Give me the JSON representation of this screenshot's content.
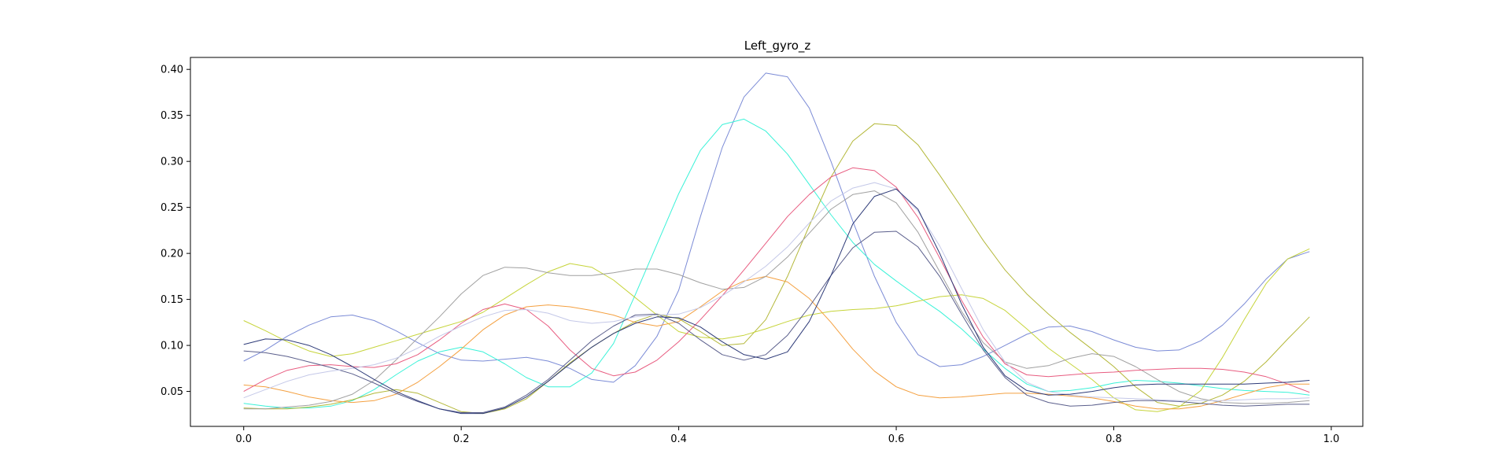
{
  "chart_data": {
    "type": "line",
    "title": "Left_gyro_z",
    "xlabel": "",
    "ylabel": "",
    "xlim": [
      -0.049,
      1.029
    ],
    "ylim": [
      0.012,
      0.413
    ],
    "xticks": [
      0.0,
      0.2,
      0.4,
      0.6,
      0.8,
      1.0
    ],
    "xtick_labels": [
      "0.0",
      "0.2",
      "0.4",
      "0.6",
      "0.8",
      "1.0"
    ],
    "yticks": [
      0.05,
      0.1,
      0.15,
      0.2,
      0.25,
      0.3,
      0.35,
      0.4
    ],
    "ytick_labels": [
      "0.05",
      "0.10",
      "0.15",
      "0.20",
      "0.25",
      "0.30",
      "0.35",
      "0.40"
    ],
    "grid": false,
    "legend": "none",
    "x": [
      0.0,
      0.02,
      0.04,
      0.06,
      0.08,
      0.1,
      0.12,
      0.14,
      0.16,
      0.18,
      0.2,
      0.22,
      0.24,
      0.26,
      0.28,
      0.3,
      0.32,
      0.34,
      0.36,
      0.38,
      0.4,
      0.42,
      0.44,
      0.46,
      0.48,
      0.5,
      0.52,
      0.54,
      0.56,
      0.58,
      0.6,
      0.62,
      0.64,
      0.66,
      0.68,
      0.7,
      0.72,
      0.74,
      0.76,
      0.78,
      0.8,
      0.82,
      0.84,
      0.86,
      0.88,
      0.9,
      0.92,
      0.94,
      0.96,
      0.98
    ],
    "series": [
      {
        "color": "#7b8bd6",
        "values": [
          0.083,
          0.095,
          0.11,
          0.122,
          0.131,
          0.133,
          0.127,
          0.116,
          0.103,
          0.091,
          0.084,
          0.083,
          0.085,
          0.087,
          0.083,
          0.075,
          0.063,
          0.06,
          0.078,
          0.11,
          0.16,
          0.24,
          0.315,
          0.37,
          0.396,
          0.392,
          0.358,
          0.3,
          0.235,
          0.175,
          0.125,
          0.09,
          0.077,
          0.079,
          0.088,
          0.1,
          0.112,
          0.12,
          0.121,
          0.115,
          0.106,
          0.098,
          0.094,
          0.095,
          0.105,
          0.122,
          0.145,
          0.172,
          0.194,
          0.202
        ]
      },
      {
        "color": "#3af2d8",
        "values": [
          0.037,
          0.034,
          0.032,
          0.032,
          0.034,
          0.04,
          0.052,
          0.068,
          0.083,
          0.093,
          0.098,
          0.093,
          0.08,
          0.065,
          0.055,
          0.055,
          0.07,
          0.102,
          0.155,
          0.21,
          0.265,
          0.312,
          0.34,
          0.346,
          0.333,
          0.308,
          0.275,
          0.242,
          0.212,
          0.188,
          0.17,
          0.153,
          0.137,
          0.118,
          0.096,
          0.075,
          0.058,
          0.05,
          0.051,
          0.054,
          0.059,
          0.062,
          0.061,
          0.059,
          0.056,
          0.053,
          0.051,
          0.05,
          0.049,
          0.046
        ]
      },
      {
        "color": "#b4b83a",
        "values": [
          0.032,
          0.031,
          0.031,
          0.033,
          0.036,
          0.041,
          0.048,
          0.052,
          0.048,
          0.038,
          0.028,
          0.026,
          0.031,
          0.042,
          0.061,
          0.081,
          0.098,
          0.113,
          0.126,
          0.134,
          0.129,
          0.115,
          0.1,
          0.102,
          0.128,
          0.175,
          0.23,
          0.283,
          0.322,
          0.341,
          0.339,
          0.318,
          0.285,
          0.25,
          0.214,
          0.182,
          0.156,
          0.134,
          0.114,
          0.096,
          0.077,
          0.055,
          0.038,
          0.034,
          0.037,
          0.046,
          0.061,
          0.082,
          0.107,
          0.131
        ]
      },
      {
        "color": "#c6d43a",
        "values": [
          0.127,
          0.116,
          0.104,
          0.094,
          0.088,
          0.091,
          0.098,
          0.105,
          0.112,
          0.119,
          0.126,
          0.136,
          0.151,
          0.166,
          0.18,
          0.189,
          0.185,
          0.171,
          0.152,
          0.133,
          0.115,
          0.109,
          0.107,
          0.111,
          0.118,
          0.126,
          0.133,
          0.137,
          0.139,
          0.14,
          0.143,
          0.148,
          0.153,
          0.155,
          0.151,
          0.138,
          0.118,
          0.097,
          0.08,
          0.063,
          0.043,
          0.03,
          0.028,
          0.033,
          0.051,
          0.087,
          0.128,
          0.167,
          0.194,
          0.205
        ]
      },
      {
        "color": "#f4a040",
        "values": [
          0.057,
          0.055,
          0.05,
          0.044,
          0.04,
          0.038,
          0.04,
          0.047,
          0.06,
          0.077,
          0.096,
          0.117,
          0.133,
          0.142,
          0.144,
          0.142,
          0.138,
          0.133,
          0.125,
          0.121,
          0.126,
          0.142,
          0.159,
          0.17,
          0.175,
          0.169,
          0.151,
          0.125,
          0.096,
          0.072,
          0.055,
          0.046,
          0.043,
          0.044,
          0.046,
          0.048,
          0.048,
          0.047,
          0.045,
          0.043,
          0.039,
          0.034,
          0.031,
          0.031,
          0.034,
          0.04,
          0.047,
          0.054,
          0.058,
          0.058
        ]
      },
      {
        "color": "#a0a0a0",
        "values": [
          0.031,
          0.031,
          0.033,
          0.035,
          0.039,
          0.047,
          0.062,
          0.084,
          0.108,
          0.131,
          0.156,
          0.176,
          0.185,
          0.184,
          0.179,
          0.176,
          0.176,
          0.179,
          0.183,
          0.183,
          0.177,
          0.168,
          0.161,
          0.163,
          0.175,
          0.196,
          0.222,
          0.248,
          0.264,
          0.268,
          0.255,
          0.223,
          0.18,
          0.137,
          0.103,
          0.082,
          0.075,
          0.078,
          0.086,
          0.091,
          0.088,
          0.077,
          0.063,
          0.05,
          0.042,
          0.038,
          0.037,
          0.037,
          0.038,
          0.04
        ]
      },
      {
        "color": "#e85c80",
        "values": [
          0.05,
          0.063,
          0.073,
          0.078,
          0.079,
          0.077,
          0.076,
          0.08,
          0.09,
          0.106,
          0.124,
          0.139,
          0.145,
          0.139,
          0.121,
          0.095,
          0.075,
          0.067,
          0.071,
          0.084,
          0.104,
          0.128,
          0.154,
          0.182,
          0.211,
          0.24,
          0.264,
          0.283,
          0.293,
          0.29,
          0.272,
          0.239,
          0.195,
          0.149,
          0.109,
          0.08,
          0.068,
          0.066,
          0.068,
          0.07,
          0.071,
          0.073,
          0.074,
          0.075,
          0.075,
          0.074,
          0.071,
          0.066,
          0.058,
          0.049
        ]
      },
      {
        "color": "#5b5f8c",
        "values": [
          0.094,
          0.092,
          0.088,
          0.082,
          0.076,
          0.069,
          0.059,
          0.048,
          0.039,
          0.031,
          0.027,
          0.027,
          0.033,
          0.046,
          0.063,
          0.084,
          0.105,
          0.121,
          0.133,
          0.134,
          0.124,
          0.106,
          0.09,
          0.084,
          0.09,
          0.111,
          0.142,
          0.176,
          0.206,
          0.223,
          0.224,
          0.207,
          0.175,
          0.134,
          0.095,
          0.065,
          0.046,
          0.038,
          0.034,
          0.035,
          0.038,
          0.04,
          0.04,
          0.039,
          0.037,
          0.035,
          0.034,
          0.035,
          0.036,
          0.036
        ]
      },
      {
        "color": "#c4c8e8",
        "values": [
          0.043,
          0.052,
          0.061,
          0.068,
          0.072,
          0.075,
          0.079,
          0.086,
          0.097,
          0.11,
          0.121,
          0.131,
          0.138,
          0.139,
          0.135,
          0.127,
          0.124,
          0.126,
          0.131,
          0.133,
          0.134,
          0.141,
          0.154,
          0.169,
          0.186,
          0.207,
          0.233,
          0.257,
          0.271,
          0.277,
          0.27,
          0.246,
          0.208,
          0.162,
          0.117,
          0.082,
          0.06,
          0.05,
          0.046,
          0.044,
          0.043,
          0.042,
          0.041,
          0.04,
          0.04,
          0.04,
          0.041,
          0.042,
          0.042,
          0.043
        ]
      },
      {
        "color": "#2d3a78",
        "values": [
          0.101,
          0.107,
          0.106,
          0.1,
          0.09,
          0.077,
          0.063,
          0.05,
          0.04,
          0.031,
          0.026,
          0.026,
          0.032,
          0.044,
          0.061,
          0.08,
          0.098,
          0.113,
          0.124,
          0.131,
          0.13,
          0.12,
          0.104,
          0.09,
          0.085,
          0.093,
          0.126,
          0.176,
          0.232,
          0.262,
          0.27,
          0.248,
          0.2,
          0.145,
          0.098,
          0.067,
          0.051,
          0.046,
          0.047,
          0.05,
          0.054,
          0.057,
          0.058,
          0.058,
          0.058,
          0.058,
          0.058,
          0.059,
          0.06,
          0.062
        ]
      }
    ]
  }
}
